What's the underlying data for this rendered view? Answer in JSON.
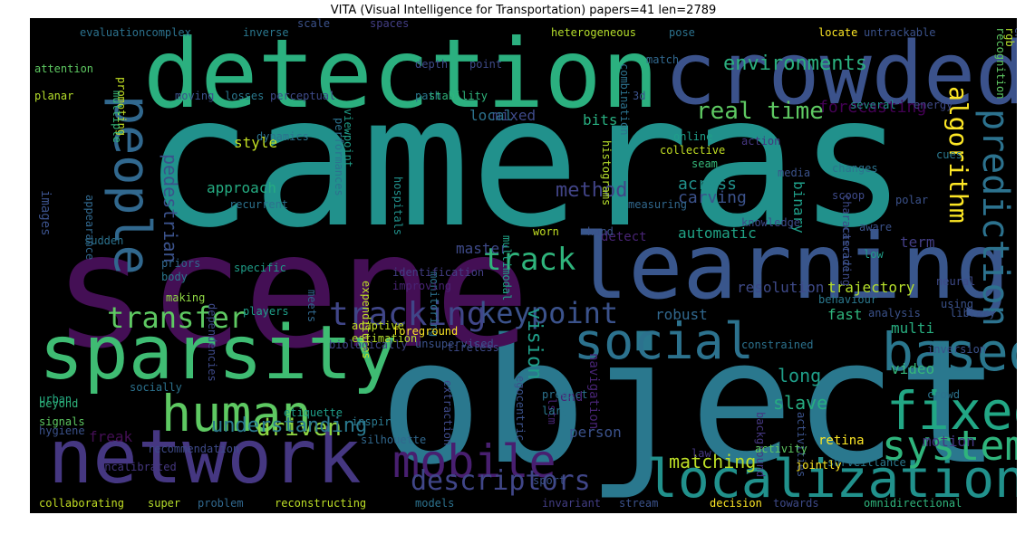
{
  "title": "VITA (Visual Intelligence for Transportation) papers=41 len=2789",
  "words": [
    "cameras",
    "object",
    "scene",
    "detection",
    "crowded",
    "learning",
    "network",
    "sparsity",
    "localization",
    "social",
    "based",
    "fixed",
    "human",
    "people",
    "system",
    "mobile",
    "keypoint",
    "tracking",
    "transfer",
    "track",
    "prediction",
    "algorithm",
    "descriptors",
    "driven",
    "real time",
    "environments",
    "matching",
    "understanding",
    "method",
    "pedestrian",
    "vision",
    "approach",
    "across",
    "carving",
    "automatic",
    "forecasting",
    "resolution",
    "trajectory",
    "robust",
    "fast",
    "multi",
    "video",
    "motion",
    "retina",
    "long",
    "slave",
    "navigation",
    "person",
    "freak",
    "style",
    "mixed",
    "local",
    "bits",
    "master",
    "detect",
    "binary",
    "term",
    "end",
    "images",
    "sudden",
    "appearance",
    "histograms",
    "hospitals",
    "monitoring",
    "multimodal",
    "expenditures",
    "meets",
    "priors",
    "body",
    "specific",
    "making",
    "players",
    "dependencies",
    "identification",
    "improving",
    "foreground",
    "adaptive",
    "estimation",
    "unsupervised",
    "tireless",
    "biologically",
    "socially",
    "urban",
    "beyond",
    "signals",
    "hygiene",
    "uncalibrated",
    "recommendation",
    "silhouette",
    "inspired",
    "etiquette",
    "lstm",
    "egocentric",
    "background",
    "activities",
    "predict",
    "large",
    "extraction",
    "super",
    "collaborating",
    "problem",
    "reconstructing",
    "models",
    "invariant",
    "stream",
    "decision",
    "towards",
    "omnidirectional",
    "sport",
    "crowd",
    "surveillance",
    "law",
    "activity",
    "jointly",
    "evaluationcomplex",
    "inverse",
    "scale",
    "spaces",
    "heterogeneous",
    "pose",
    "locate",
    "untrackable",
    "attention",
    "depth",
    "point",
    "match",
    "planar",
    "promoting",
    "multiple",
    "moving",
    "losses",
    "perceptual",
    "path",
    "stability",
    "combination",
    "rgb",
    "3d",
    "several",
    "energy",
    "recognition",
    "enforcement",
    "dynamics",
    "recurrent",
    "performances",
    "viewpoint",
    "online",
    "collective",
    "seam",
    "action",
    "changes",
    "cues",
    "media",
    "scoop",
    "polar",
    "characterizing",
    "measuring",
    "hand",
    "worn",
    "knowledge",
    "aware",
    "cascade",
    "low",
    "neural",
    "using",
    "library",
    "behaviour",
    "analysis",
    "constrained",
    "inversion"
  ]
}
